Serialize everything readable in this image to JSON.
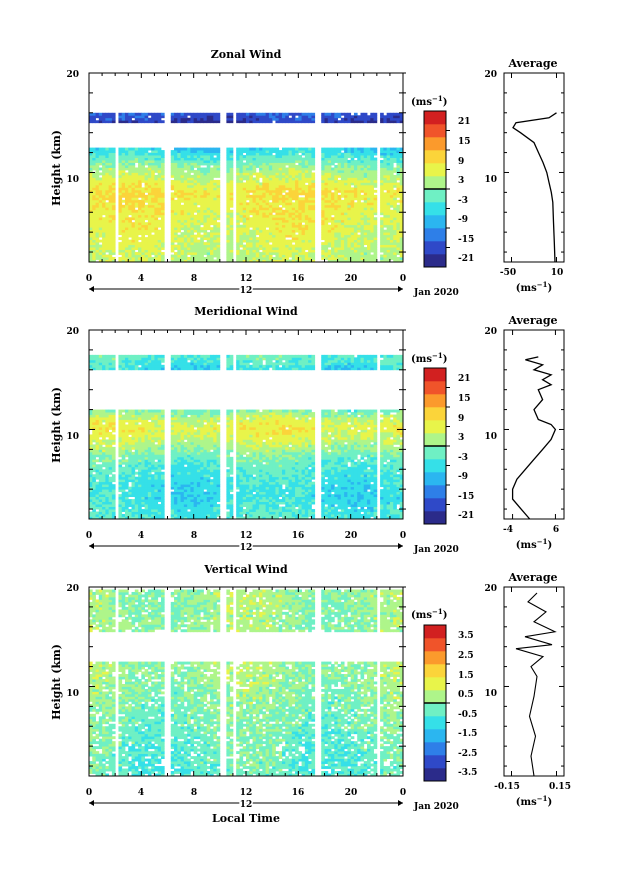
{
  "colormap": [
    "#2b2b8a",
    "#2f49c8",
    "#2e7fe8",
    "#2bb6f0",
    "#35e0e8",
    "#6ff0c4",
    "#aef58a",
    "#e8f44a",
    "#fbd43a",
    "#fb9a2c",
    "#f0542a",
    "#d22020"
  ],
  "chart_data": [
    {
      "type": "heatmap",
      "title": "Zonal Wind",
      "ylabel": "Height (km)",
      "xlabel": "",
      "x_ticks": [
        "0",
        "4",
        "8",
        "12",
        "16",
        "20",
        "0"
      ],
      "y_ticks": [
        "10",
        "20"
      ],
      "xlim": [
        0,
        24
      ],
      "ylim": [
        1,
        20
      ],
      "date_marker": "12",
      "date_label": "Jan 2020",
      "colorbar": {
        "unit_prefix": "(ms",
        "unit_exp": "−1",
        "unit_suffix": ")",
        "ticks": [
          "21",
          "15",
          "9",
          "3",
          "-3",
          "-9",
          "-15",
          "-21"
        ],
        "range": [
          -24,
          24
        ]
      },
      "data_gaps_hours": [
        [
          1.8,
          2.2
        ],
        [
          5.6,
          6.1
        ],
        [
          9.8,
          10.3
        ],
        [
          10.9,
          11.2
        ],
        [
          17.2,
          17.6
        ],
        [
          21.8,
          22.2
        ]
      ],
      "value_profile": [
        {
          "h": 1,
          "v": 3
        },
        {
          "h": 5,
          "v": 6
        },
        {
          "h": 8,
          "v": 8
        },
        {
          "h": 10,
          "v": 2
        },
        {
          "h": 11.5,
          "v": -4
        },
        {
          "h": 12.5,
          "v": -8
        },
        {
          "h": 15,
          "v": -20
        },
        {
          "h": 16,
          "v": -16
        },
        {
          "h": 17,
          "v": -12
        }
      ],
      "data_bands": [
        [
          1,
          12.5
        ],
        [
          15.0,
          15.8
        ]
      ],
      "average_profile": {
        "title": "Average",
        "x_ticks": [
          "-50",
          "10"
        ],
        "xlim": [
          -60,
          20
        ],
        "y_ticks": [
          "10",
          "20"
        ],
        "ylim": [
          1,
          20
        ],
        "unit_prefix": "(ms",
        "unit_exp": "−1",
        "unit_suffix": ")",
        "points": [
          {
            "h": 1,
            "v": 8
          },
          {
            "h": 3,
            "v": 7
          },
          {
            "h": 5,
            "v": 6
          },
          {
            "h": 7,
            "v": 5
          },
          {
            "h": 8,
            "v": 3
          },
          {
            "h": 9,
            "v": 0
          },
          {
            "h": 10,
            "v": -3
          },
          {
            "h": 11,
            "v": -8
          },
          {
            "h": 12,
            "v": -14
          },
          {
            "h": 13,
            "v": -20
          },
          {
            "h": 14,
            "v": -38
          },
          {
            "h": 14.5,
            "v": -48
          },
          {
            "h": 15,
            "v": -44
          },
          {
            "h": 15.5,
            "v": 0
          },
          {
            "h": 16,
            "v": 10
          }
        ]
      }
    },
    {
      "type": "heatmap",
      "title": "Meridional Wind",
      "ylabel": "Height (km)",
      "xlabel": "",
      "x_ticks": [
        "0",
        "4",
        "8",
        "12",
        "16",
        "20",
        "0"
      ],
      "y_ticks": [
        "10",
        "20"
      ],
      "xlim": [
        0,
        24
      ],
      "ylim": [
        1,
        20
      ],
      "date_marker": "12",
      "date_label": "Jan 2020",
      "colorbar": {
        "unit_prefix": "(ms",
        "unit_exp": "−1",
        "unit_suffix": ")",
        "ticks": [
          "21",
          "15",
          "9",
          "3",
          "-3",
          "-9",
          "-15",
          "-21"
        ],
        "range": [
          -24,
          24
        ]
      },
      "data_gaps_hours": [
        [
          1.8,
          2.2
        ],
        [
          5.6,
          6.1
        ],
        [
          9.8,
          10.3
        ],
        [
          10.9,
          11.2
        ],
        [
          17.2,
          17.6
        ],
        [
          21.8,
          22.2
        ]
      ],
      "value_profile": [
        {
          "h": 1,
          "v": -4
        },
        {
          "h": 3,
          "v": -6
        },
        {
          "h": 5,
          "v": -5
        },
        {
          "h": 7,
          "v": -2
        },
        {
          "h": 8.5,
          "v": 3
        },
        {
          "h": 10,
          "v": 7
        },
        {
          "h": 11,
          "v": 4
        },
        {
          "h": 12,
          "v": -2
        },
        {
          "h": 16,
          "v": -6
        },
        {
          "h": 17,
          "v": -3
        }
      ],
      "data_bands": [
        [
          1,
          12.0
        ],
        [
          16.0,
          17.3
        ]
      ],
      "average_profile": {
        "title": "Average",
        "x_ticks": [
          "-4",
          "6"
        ],
        "xlim": [
          -6,
          8
        ],
        "y_ticks": [
          "10",
          "20"
        ],
        "ylim": [
          1,
          20
        ],
        "unit_prefix": "(ms",
        "unit_exp": "−1",
        "unit_suffix": ")",
        "points": [
          {
            "h": 1,
            "v": 0
          },
          {
            "h": 2,
            "v": -2
          },
          {
            "h": 3,
            "v": -4
          },
          {
            "h": 4,
            "v": -4
          },
          {
            "h": 5,
            "v": -3
          },
          {
            "h": 6,
            "v": -1
          },
          {
            "h": 7,
            "v": 1
          },
          {
            "h": 8,
            "v": 3
          },
          {
            "h": 9,
            "v": 5
          },
          {
            "h": 10,
            "v": 6
          },
          {
            "h": 10.5,
            "v": 5
          },
          {
            "h": 11,
            "v": 2
          },
          {
            "h": 12,
            "v": 1
          },
          {
            "h": 13,
            "v": 3
          },
          {
            "h": 14,
            "v": 2
          },
          {
            "h": 14.5,
            "v": 5
          },
          {
            "h": 15,
            "v": 3
          },
          {
            "h": 15.5,
            "v": 5
          },
          {
            "h": 16,
            "v": 1
          },
          {
            "h": 16.5,
            "v": 3
          },
          {
            "h": 17,
            "v": -1
          },
          {
            "h": 17.3,
            "v": 2
          }
        ]
      }
    },
    {
      "type": "heatmap",
      "title": "Vertical Wind",
      "ylabel": "Height (km)",
      "xlabel": "Local Time",
      "x_ticks": [
        "0",
        "4",
        "8",
        "12",
        "16",
        "20",
        "0"
      ],
      "y_ticks": [
        "10",
        "20"
      ],
      "xlim": [
        0,
        24
      ],
      "ylim": [
        1,
        20
      ],
      "date_marker": "12",
      "date_label": "Jan 2020",
      "colorbar": {
        "unit_prefix": "(ms",
        "unit_exp": "−1",
        "unit_suffix": ")",
        "ticks": [
          "3.5",
          "2.5",
          "1.5",
          "0.5",
          "-0.5",
          "-1.5",
          "-2.5",
          "-3.5"
        ],
        "range": [
          -4,
          4
        ]
      },
      "data_gaps_hours": [
        [
          1.8,
          2.2
        ],
        [
          5.6,
          6.1
        ],
        [
          9.8,
          10.3
        ],
        [
          10.9,
          11.2
        ],
        [
          17.2,
          17.6
        ],
        [
          21.8,
          22.2
        ]
      ],
      "value_profile": [
        {
          "h": 1,
          "v": -0.5
        },
        {
          "h": 6,
          "v": -0.2
        },
        {
          "h": 10,
          "v": 0.1
        },
        {
          "h": 12,
          "v": 0.2
        },
        {
          "h": 16,
          "v": 0.1
        },
        {
          "h": 19,
          "v": 0.2
        }
      ],
      "data_bands": [
        [
          1,
          12.5
        ],
        [
          15.5,
          19.6
        ]
      ],
      "average_profile": {
        "title": "Average",
        "x_ticks": [
          "-0.15",
          "0.15"
        ],
        "xlim": [
          -0.2,
          0.2
        ],
        "y_ticks": [
          "10",
          "20"
        ],
        "ylim": [
          1,
          20
        ],
        "unit_prefix": "(ms",
        "unit_exp": "−1",
        "unit_suffix": ")",
        "points": [
          {
            "h": 1,
            "v": 0.0
          },
          {
            "h": 3,
            "v": -0.02
          },
          {
            "h": 5,
            "v": 0.01
          },
          {
            "h": 7,
            "v": -0.03
          },
          {
            "h": 9,
            "v": 0.0
          },
          {
            "h": 11,
            "v": 0.02
          },
          {
            "h": 12,
            "v": -0.02
          },
          {
            "h": 13,
            "v": 0.06
          },
          {
            "h": 13.8,
            "v": -0.12
          },
          {
            "h": 14.2,
            "v": 0.12
          },
          {
            "h": 15,
            "v": -0.06
          },
          {
            "h": 15.5,
            "v": 0.14
          },
          {
            "h": 16.5,
            "v": 0.0
          },
          {
            "h": 17.5,
            "v": 0.08
          },
          {
            "h": 18.5,
            "v": -0.04
          },
          {
            "h": 19.4,
            "v": 0.02
          }
        ]
      }
    }
  ]
}
